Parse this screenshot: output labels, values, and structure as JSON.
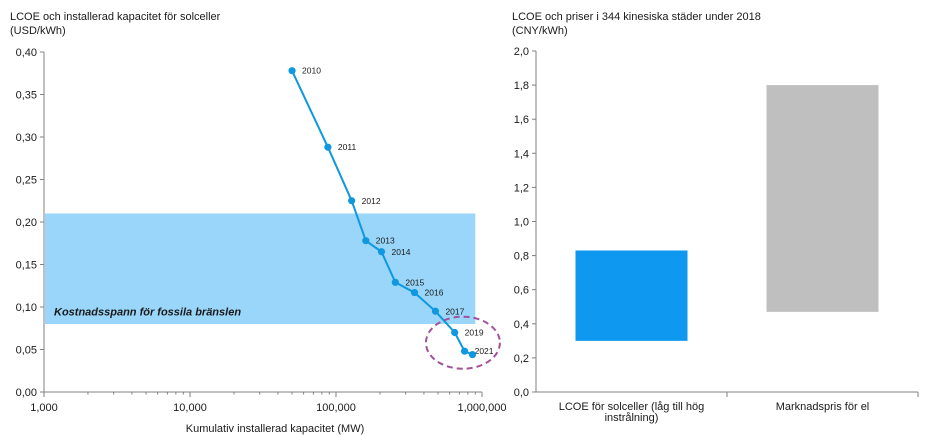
{
  "chart_data": [
    {
      "type": "line",
      "title": "LCOE och installerad kapacitet för solceller",
      "unit": "(USD/kWh)",
      "xlabel": "Kumulativ installerad kapacitet (MW)",
      "xscale": "log",
      "xlim": [
        1000,
        1000000
      ],
      "x_ticks": [
        {
          "value": 1000,
          "label": "1,000"
        },
        {
          "value": 10000,
          "label": "10,000"
        },
        {
          "value": 100000,
          "label": "100,000"
        },
        {
          "value": 1000000,
          "label": "1,000,000"
        }
      ],
      "ylim": [
        0,
        0.4
      ],
      "y_ticks": [
        {
          "value": 0.0,
          "label": "0,00"
        },
        {
          "value": 0.05,
          "label": "0,05"
        },
        {
          "value": 0.1,
          "label": "0,10"
        },
        {
          "value": 0.15,
          "label": "0,15"
        },
        {
          "value": 0.2,
          "label": "0,20"
        },
        {
          "value": 0.25,
          "label": "0,25"
        },
        {
          "value": 0.3,
          "label": "0,30"
        },
        {
          "value": 0.35,
          "label": "0,35"
        },
        {
          "value": 0.4,
          "label": "0,40"
        }
      ],
      "band": {
        "label": "Kostnadsspann för fossila bränslen",
        "y_min": 0.08,
        "y_max": 0.21,
        "x_max": 900000,
        "color": "#99d6f9"
      },
      "line_color": "#0f98e0",
      "points": [
        {
          "label": "2010",
          "x": 50000,
          "y": 0.378
        },
        {
          "label": "2011",
          "x": 88000,
          "y": 0.288
        },
        {
          "label": "2012",
          "x": 128000,
          "y": 0.225
        },
        {
          "label": "2013",
          "x": 160000,
          "y": 0.178
        },
        {
          "label": "2014",
          "x": 205000,
          "y": 0.165
        },
        {
          "label": "2015",
          "x": 255000,
          "y": 0.129
        },
        {
          "label": "2016",
          "x": 345000,
          "y": 0.117
        },
        {
          "label": "2017",
          "x": 480000,
          "y": 0.095
        },
        {
          "label": "2019",
          "x": 650000,
          "y": 0.07
        },
        {
          "label": "2021",
          "x": 760000,
          "y": 0.048
        },
        {
          "label": "",
          "x": 860000,
          "y": 0.044
        }
      ],
      "highlight": {
        "shape": "dashed-ellipse",
        "color": "#a0529a",
        "cx": 740000,
        "cy": 0.058
      }
    },
    {
      "type": "range-bar",
      "title": "LCOE och priser i 344 kinesiska städer under 2018",
      "unit": "(CNY/kWh)",
      "ylim": [
        0,
        2
      ],
      "y_ticks": [
        {
          "value": 0.0,
          "label": "0,0"
        },
        {
          "value": 0.2,
          "label": "0,2"
        },
        {
          "value": 0.4,
          "label": "0,4"
        },
        {
          "value": 0.6,
          "label": "0,6"
        },
        {
          "value": 0.8,
          "label": "0,8"
        },
        {
          "value": 1.0,
          "label": "1,0"
        },
        {
          "value": 1.2,
          "label": "1,2"
        },
        {
          "value": 1.4,
          "label": "1,4"
        },
        {
          "value": 1.6,
          "label": "1,6"
        },
        {
          "value": 1.8,
          "label": "1,8"
        },
        {
          "value": 2.0,
          "label": "2,0"
        }
      ],
      "bars": [
        {
          "category": [
            "LCOE för solceller (låg till hög",
            "instrålning)"
          ],
          "low": 0.3,
          "high": 0.83,
          "color": "#0f98ef"
        },
        {
          "category": [
            "Marknadspris för el"
          ],
          "low": 0.47,
          "high": 1.8,
          "color": "#bfbfbf"
        }
      ]
    }
  ]
}
